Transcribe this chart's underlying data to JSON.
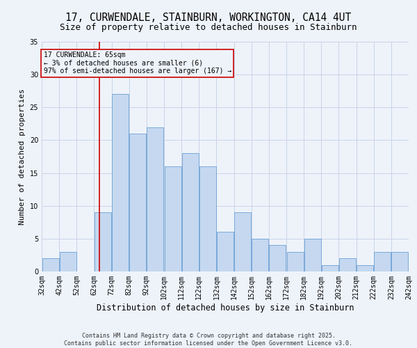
{
  "title_line1": "17, CURWENDALE, STAINBURN, WORKINGTON, CA14 4UT",
  "title_line2": "Size of property relative to detached houses in Stainburn",
  "xlabel": "Distribution of detached houses by size in Stainburn",
  "ylabel": "Number of detached properties",
  "footer": "Contains HM Land Registry data © Crown copyright and database right 2025.\nContains public sector information licensed under the Open Government Licence v3.0.",
  "bin_edges": [
    32,
    42,
    52,
    62,
    72,
    82,
    92,
    102,
    112,
    122,
    132,
    142,
    152,
    162,
    172,
    182,
    192,
    202,
    212,
    222,
    232,
    242
  ],
  "counts": [
    2,
    3,
    0,
    9,
    27,
    21,
    22,
    16,
    18,
    16,
    6,
    9,
    5,
    4,
    3,
    5,
    1,
    2,
    1,
    3,
    3
  ],
  "bar_facecolor": "#c5d8f0",
  "bar_edgecolor": "#6aa0d4",
  "grid_color": "#c8d4e8",
  "background_color": "#eef3fa",
  "property_value": 65,
  "vline_color": "#cc0000",
  "annotation_text": "17 CURWENDALE: 65sqm\n← 3% of detached houses are smaller (6)\n97% of semi-detached houses are larger (167) →",
  "annotation_box_edgecolor": "#cc0000",
  "annotation_fontsize": 7.0,
  "ylim": [
    0,
    35
  ],
  "title_fontsize1": 10.5,
  "title_fontsize2": 9.0,
  "xlabel_fontsize": 8.5,
  "ylabel_fontsize": 8.0,
  "tick_fontsize": 7.0,
  "footer_fontsize": 6.0
}
